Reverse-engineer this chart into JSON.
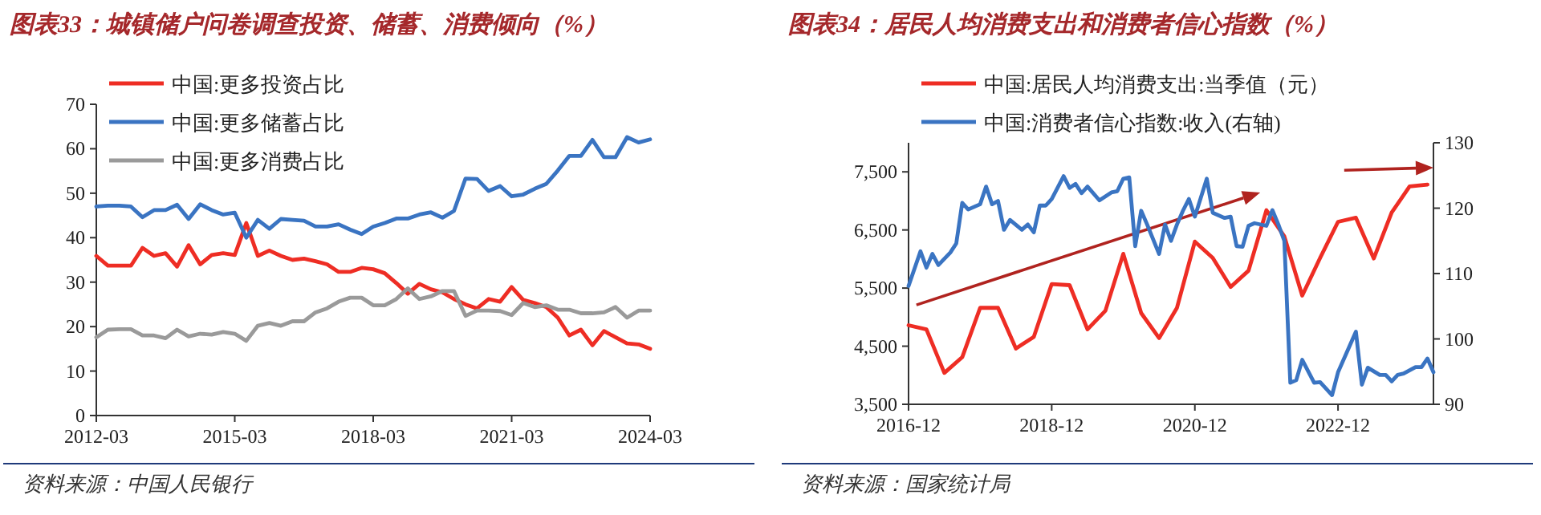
{
  "chart_data": [
    {
      "type": "line",
      "title": "图表33：城镇储户问卷调查投资、储蓄、消费倾向（%）",
      "annotations": [
        "资料来源：中国人民银行"
      ],
      "x": [
        "2012-03",
        "2012-06",
        "2012-09",
        "2012-12",
        "2013-03",
        "2013-06",
        "2013-09",
        "2013-12",
        "2014-03",
        "2014-06",
        "2014-09",
        "2014-12",
        "2015-03",
        "2015-06",
        "2015-09",
        "2015-12",
        "2016-03",
        "2016-06",
        "2016-09",
        "2016-12",
        "2017-03",
        "2017-06",
        "2017-09",
        "2017-12",
        "2018-03",
        "2018-06",
        "2018-09",
        "2018-12",
        "2019-03",
        "2019-06",
        "2019-09",
        "2019-12",
        "2020-03",
        "2020-06",
        "2020-09",
        "2020-12",
        "2021-03",
        "2021-06",
        "2021-09",
        "2021-12",
        "2022-03",
        "2022-06",
        "2022-09",
        "2022-12",
        "2023-03",
        "2023-06",
        "2023-09",
        "2023-12",
        "2024-03"
      ],
      "series": [
        {
          "name": "中国:更多投资占比",
          "color": "#ee2d24",
          "values": [
            35.9,
            33.7,
            33.7,
            33.7,
            37.7,
            35.9,
            36.5,
            33.5,
            38.3,
            34,
            36.1,
            36.5,
            36.1,
            43.3,
            35.9,
            37.1,
            35.9,
            35,
            35.3,
            34.7,
            34,
            32.3,
            32.3,
            33.2,
            32.9,
            32,
            29.8,
            27.4,
            29.6,
            28.4,
            27.7,
            26.2,
            25,
            24.1,
            26.2,
            25.6,
            28.9,
            26,
            25.3,
            24.4,
            22,
            18,
            19.3,
            15.8,
            19,
            17.6,
            16.2,
            16,
            15
          ]
        },
        {
          "name": "中国:更多储蓄占比",
          "color": "#3a74c2",
          "values": [
            47,
            47.2,
            47.2,
            47,
            44.6,
            46.2,
            46.2,
            47.4,
            44.2,
            47.5,
            46.2,
            45.2,
            45.6,
            40,
            44,
            42,
            44.2,
            44,
            43.8,
            42.5,
            42.5,
            43,
            41.8,
            40.8,
            42.5,
            43.3,
            44.3,
            44.3,
            45.2,
            45.7,
            44.5,
            46,
            53.3,
            53.2,
            50.5,
            51.6,
            49.3,
            49.7,
            51,
            52.1,
            55.1,
            58.4,
            58.4,
            62,
            58.1,
            58.1,
            62.6,
            61.4,
            62.1
          ]
        },
        {
          "name": "中国:更多消费占比",
          "color": "#9a9a9a",
          "values": [
            17.6,
            19.3,
            19.4,
            19.4,
            18,
            18,
            17.4,
            19.3,
            17.8,
            18.4,
            18.2,
            18.8,
            18.4,
            16.8,
            20.2,
            20.8,
            20.2,
            21.2,
            21.2,
            23.2,
            24.1,
            25.6,
            26.5,
            26.5,
            24.8,
            24.8,
            26.2,
            28.6,
            26.2,
            26.8,
            28,
            28,
            22.4,
            23.6,
            23.6,
            23.5,
            22.6,
            25.3,
            24.4,
            24.8,
            23.8,
            23.8,
            23,
            23,
            23.2,
            24.4,
            22,
            23.6,
            23.6
          ]
        }
      ],
      "xlim": [
        "2012-03",
        "2024-03"
      ],
      "xticks": [
        "2012-03",
        "2015-03",
        "2018-03",
        "2021-03",
        "2024-03"
      ],
      "ylim": [
        0,
        70
      ],
      "yticks": [
        0,
        10,
        20,
        30,
        40,
        50,
        60,
        70
      ],
      "legend": "top"
    },
    {
      "type": "line",
      "title": "图表34：居民人均消费支出和消费者信心指数（%）",
      "annotations": [
        "资料来源：国家统计局"
      ],
      "series": [
        {
          "name": "中国:居民人均消费支出:当季值（元）",
          "color": "#ee2d24",
          "x": [
            "2016-12",
            "2017-03",
            "2017-06",
            "2017-09",
            "2017-12",
            "2018-03",
            "2018-06",
            "2018-09",
            "2018-12",
            "2019-03",
            "2019-06",
            "2019-09",
            "2019-12",
            "2020-03",
            "2020-06",
            "2020-09",
            "2020-12",
            "2021-03",
            "2021-06",
            "2021-09",
            "2021-12",
            "2022-03",
            "2022-06",
            "2022-09",
            "2022-12",
            "2023-03",
            "2023-06",
            "2023-09",
            "2023-12",
            "2024-03"
          ],
          "values": [
            4860,
            4790,
            4040,
            4310,
            5160,
            5160,
            4460,
            4660,
            5570,
            5550,
            4790,
            5110,
            6090,
            5070,
            4640,
            5160,
            6300,
            6020,
            5520,
            5800,
            6840,
            6390,
            5370,
            6020,
            6640,
            6710,
            6010,
            6800,
            7250,
            7280
          ]
        },
        {
          "name": "中国:消费者信心指数:收入(右轴)",
          "color": "#3a74c2",
          "axis": "y2",
          "x": [
            "2016-12",
            "2017-02",
            "2017-03",
            "2017-04",
            "2017-05",
            "2017-07",
            "2017-08",
            "2017-09",
            "2017-10",
            "2017-12",
            "2018-01",
            "2018-02",
            "2018-03",
            "2018-04",
            "2018-05",
            "2018-07",
            "2018-08",
            "2018-09",
            "2018-10",
            "2018-11",
            "2018-12",
            "2019-02",
            "2019-03",
            "2019-04",
            "2019-05",
            "2019-06",
            "2019-08",
            "2019-10",
            "2019-11",
            "2019-12",
            "2020-01",
            "2020-02",
            "2020-03",
            "2020-04",
            "2020-06",
            "2020-07",
            "2020-08",
            "2020-09",
            "2020-10",
            "2020-11",
            "2020-12",
            "2021-02",
            "2021-03",
            "2021-05",
            "2021-06",
            "2021-07",
            "2021-08",
            "2021-09",
            "2021-10",
            "2021-12",
            "2022-01",
            "2022-02",
            "2022-03",
            "2022-04",
            "2022-05",
            "2022-06",
            "2022-08",
            "2022-09",
            "2022-11",
            "2022-12",
            "2023-03",
            "2023-04",
            "2023-05",
            "2023-07",
            "2023-08",
            "2023-09",
            "2023-10",
            "2023-11",
            "2024-01",
            "2024-02",
            "2024-03",
            "2024-04"
          ],
          "values": [
            108.1,
            113.4,
            110.9,
            113,
            111.3,
            113.2,
            114.6,
            120.8,
            119.8,
            120.6,
            123.3,
            120.6,
            121.1,
            116.7,
            118.2,
            116.7,
            117.5,
            116.3,
            120.4,
            120.4,
            121.4,
            124.9,
            123.1,
            123.7,
            122.3,
            123.3,
            121.2,
            122.4,
            122.6,
            124.5,
            124.7,
            114.2,
            119.6,
            117.5,
            113,
            117.5,
            115,
            117.5,
            119.6,
            121.4,
            118.7,
            124.5,
            119.3,
            118.5,
            118.7,
            114.2,
            114.1,
            117.3,
            117.7,
            117.3,
            119.7,
            117.5,
            115,
            93.3,
            93.7,
            96.8,
            93.3,
            93.4,
            91.4,
            94.9,
            101.1,
            93,
            95.6,
            94.5,
            94.5,
            93.5,
            94.5,
            94.7,
            95.7,
            95.7,
            97,
            94.9
          ]
        }
      ],
      "xlim": [
        "2016-12",
        "2024-04"
      ],
      "xticks": [
        "2016-12",
        "2018-12",
        "2020-12",
        "2022-12"
      ],
      "ylim": [
        3500,
        8000
      ],
      "yticks": [
        {
          "value": 3500,
          "label": "3,500"
        },
        {
          "value": 4500,
          "label": "4,500"
        },
        {
          "value": 5500,
          "label": "5,500"
        },
        {
          "value": 6500,
          "label": "6,500"
        },
        {
          "value": 7500,
          "label": "7,500"
        }
      ],
      "y2lim": [
        90,
        130
      ],
      "y2ticks": [
        90,
        100,
        110,
        120,
        130
      ],
      "legend": "top"
    }
  ]
}
